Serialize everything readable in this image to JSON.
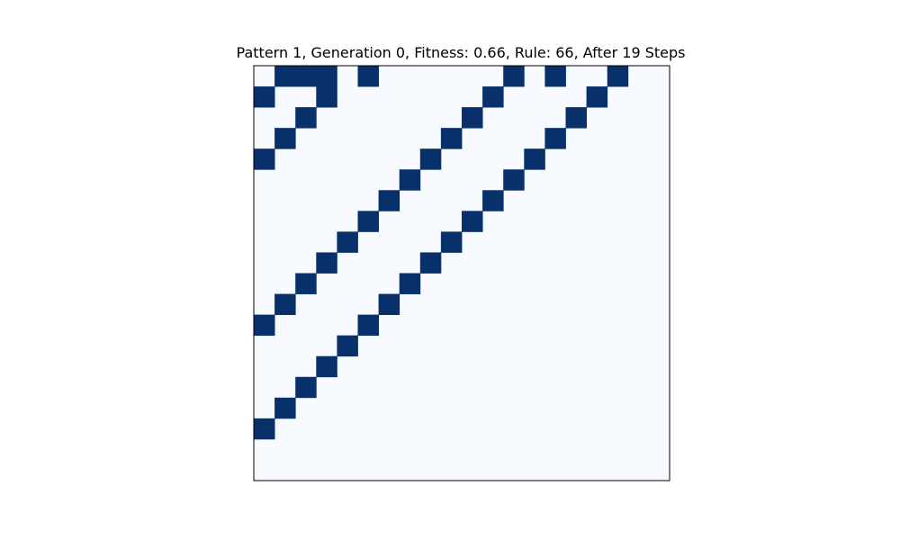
{
  "chart_data": {
    "type": "heatmap",
    "title": "Pattern 1, Generation 0, Fitness: 0.66, Rule: 66, After 19 Steps",
    "xlabel": "",
    "ylabel": "",
    "grid": false,
    "legend": "none",
    "n_rows": 20,
    "n_cols": 20,
    "colors": {
      "off": "#f7fbff",
      "on": "#08306b"
    },
    "matrix": [
      [
        0,
        1,
        1,
        1,
        0,
        1,
        0,
        0,
        0,
        0,
        0,
        0,
        1,
        0,
        1,
        0,
        0,
        1,
        0,
        0
      ],
      [
        1,
        0,
        0,
        1,
        0,
        0,
        0,
        0,
        0,
        0,
        0,
        1,
        0,
        0,
        0,
        0,
        1,
        0,
        0,
        0
      ],
      [
        0,
        0,
        1,
        0,
        0,
        0,
        0,
        0,
        0,
        0,
        1,
        0,
        0,
        0,
        0,
        1,
        0,
        0,
        0,
        0
      ],
      [
        0,
        1,
        0,
        0,
        0,
        0,
        0,
        0,
        0,
        1,
        0,
        0,
        0,
        0,
        1,
        0,
        0,
        0,
        0,
        0
      ],
      [
        1,
        0,
        0,
        0,
        0,
        0,
        0,
        0,
        1,
        0,
        0,
        0,
        0,
        1,
        0,
        0,
        0,
        0,
        0,
        0
      ],
      [
        0,
        0,
        0,
        0,
        0,
        0,
        0,
        1,
        0,
        0,
        0,
        0,
        1,
        0,
        0,
        0,
        0,
        0,
        0,
        0
      ],
      [
        0,
        0,
        0,
        0,
        0,
        0,
        1,
        0,
        0,
        0,
        0,
        1,
        0,
        0,
        0,
        0,
        0,
        0,
        0,
        0
      ],
      [
        0,
        0,
        0,
        0,
        0,
        1,
        0,
        0,
        0,
        0,
        1,
        0,
        0,
        0,
        0,
        0,
        0,
        0,
        0,
        0
      ],
      [
        0,
        0,
        0,
        0,
        1,
        0,
        0,
        0,
        0,
        1,
        0,
        0,
        0,
        0,
        0,
        0,
        0,
        0,
        0,
        0
      ],
      [
        0,
        0,
        0,
        1,
        0,
        0,
        0,
        0,
        1,
        0,
        0,
        0,
        0,
        0,
        0,
        0,
        0,
        0,
        0,
        0
      ],
      [
        0,
        0,
        1,
        0,
        0,
        0,
        0,
        1,
        0,
        0,
        0,
        0,
        0,
        0,
        0,
        0,
        0,
        0,
        0,
        0
      ],
      [
        0,
        1,
        0,
        0,
        0,
        0,
        1,
        0,
        0,
        0,
        0,
        0,
        0,
        0,
        0,
        0,
        0,
        0,
        0,
        0
      ],
      [
        1,
        0,
        0,
        0,
        0,
        1,
        0,
        0,
        0,
        0,
        0,
        0,
        0,
        0,
        0,
        0,
        0,
        0,
        0,
        0
      ],
      [
        0,
        0,
        0,
        0,
        1,
        0,
        0,
        0,
        0,
        0,
        0,
        0,
        0,
        0,
        0,
        0,
        0,
        0,
        0,
        0
      ],
      [
        0,
        0,
        0,
        1,
        0,
        0,
        0,
        0,
        0,
        0,
        0,
        0,
        0,
        0,
        0,
        0,
        0,
        0,
        0,
        0
      ],
      [
        0,
        0,
        1,
        0,
        0,
        0,
        0,
        0,
        0,
        0,
        0,
        0,
        0,
        0,
        0,
        0,
        0,
        0,
        0,
        0
      ],
      [
        0,
        1,
        0,
        0,
        0,
        0,
        0,
        0,
        0,
        0,
        0,
        0,
        0,
        0,
        0,
        0,
        0,
        0,
        0,
        0
      ],
      [
        1,
        0,
        0,
        0,
        0,
        0,
        0,
        0,
        0,
        0,
        0,
        0,
        0,
        0,
        0,
        0,
        0,
        0,
        0,
        0
      ],
      [
        0,
        0,
        0,
        0,
        0,
        0,
        0,
        0,
        0,
        0,
        0,
        0,
        0,
        0,
        0,
        0,
        0,
        0,
        0,
        0
      ],
      [
        0,
        0,
        0,
        0,
        0,
        0,
        0,
        0,
        0,
        0,
        0,
        0,
        0,
        0,
        0,
        0,
        0,
        0,
        0,
        0
      ]
    ]
  }
}
